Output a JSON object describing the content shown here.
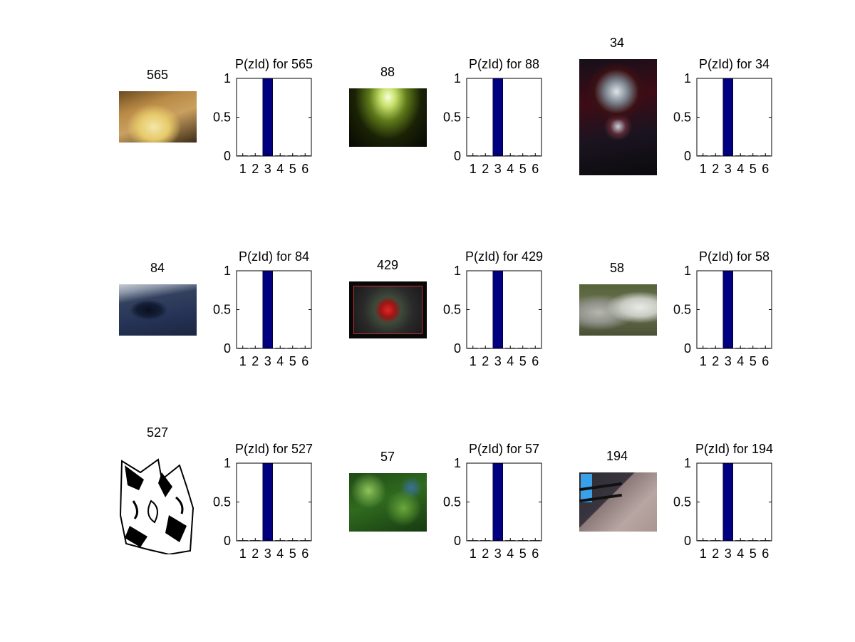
{
  "colors": {
    "bar": "#000080",
    "axis": "#000000",
    "background": "#ffffff"
  },
  "panels": [
    {
      "image_title": "565",
      "chart_title": "P(zId) for 565",
      "thumb": "cake"
    },
    {
      "image_title": "88",
      "chart_title": "P(zId) for 88",
      "thumb": "wall-light"
    },
    {
      "image_title": "34",
      "chart_title": "P(zId) for 34",
      "thumb": "motorcycle-tank"
    },
    {
      "image_title": "84",
      "chart_title": "P(zId) for 84",
      "thumb": "dome-interior"
    },
    {
      "image_title": "429",
      "chart_title": "P(zId) for 429",
      "thumb": "red-lily"
    },
    {
      "image_title": "58",
      "chart_title": "P(zId) for 58",
      "thumb": "horses"
    },
    {
      "image_title": "527",
      "chart_title": "P(zId) for 527",
      "thumb": "line-art"
    },
    {
      "image_title": "57",
      "chart_title": "P(zId) for 57",
      "thumb": "green-bokeh"
    },
    {
      "image_title": "194",
      "chart_title": "P(zId) for 194",
      "thumb": "blue-chair-shadow"
    }
  ],
  "chart_data": [
    {
      "type": "bar",
      "title": "P(zId) for 565",
      "categories": [
        "1",
        "2",
        "3",
        "4",
        "5",
        "6"
      ],
      "values": [
        0.005,
        0.005,
        1,
        0.005,
        0.005,
        0.005
      ],
      "ylim": [
        0,
        1
      ],
      "yticks": [
        "0",
        "0.5",
        "1"
      ],
      "grid": false
    },
    {
      "type": "bar",
      "title": "P(zId) for 88",
      "categories": [
        "1",
        "2",
        "3",
        "4",
        "5",
        "6"
      ],
      "values": [
        0.005,
        0.005,
        1,
        0.005,
        0.005,
        0.005
      ],
      "ylim": [
        0,
        1
      ],
      "yticks": [
        "0",
        "0.5",
        "1"
      ],
      "grid": false
    },
    {
      "type": "bar",
      "title": "P(zId) for 34",
      "categories": [
        "1",
        "2",
        "3",
        "4",
        "5",
        "6"
      ],
      "values": [
        0.005,
        0.005,
        1,
        0.005,
        0.005,
        0.005
      ],
      "ylim": [
        0,
        1
      ],
      "yticks": [
        "0",
        "0.5",
        "1"
      ],
      "grid": false
    },
    {
      "type": "bar",
      "title": "P(zId) for 84",
      "categories": [
        "1",
        "2",
        "3",
        "4",
        "5",
        "6"
      ],
      "values": [
        0.005,
        0.005,
        1,
        0.005,
        0.005,
        0.005
      ],
      "ylim": [
        0,
        1
      ],
      "yticks": [
        "0",
        "0.5",
        "1"
      ],
      "grid": false
    },
    {
      "type": "bar",
      "title": "P(zId) for 429",
      "categories": [
        "1",
        "2",
        "3",
        "4",
        "5",
        "6"
      ],
      "values": [
        0.005,
        0.005,
        1,
        0.005,
        0.005,
        0.005
      ],
      "ylim": [
        0,
        1
      ],
      "yticks": [
        "0",
        "0.5",
        "1"
      ],
      "grid": false
    },
    {
      "type": "bar",
      "title": "P(zId) for 58",
      "categories": [
        "1",
        "2",
        "3",
        "4",
        "5",
        "6"
      ],
      "values": [
        0.005,
        0.005,
        1,
        0.005,
        0.005,
        0.005
      ],
      "ylim": [
        0,
        1
      ],
      "yticks": [
        "0",
        "0.5",
        "1"
      ],
      "grid": false
    },
    {
      "type": "bar",
      "title": "P(zId) for 527",
      "categories": [
        "1",
        "2",
        "3",
        "4",
        "5",
        "6"
      ],
      "values": [
        0.005,
        0.005,
        1,
        0.005,
        0.005,
        0.005
      ],
      "ylim": [
        0,
        1
      ],
      "yticks": [
        "0",
        "0.5",
        "1"
      ],
      "grid": false
    },
    {
      "type": "bar",
      "title": "P(zId) for 57",
      "categories": [
        "1",
        "2",
        "3",
        "4",
        "5",
        "6"
      ],
      "values": [
        0.005,
        0.005,
        1,
        0.005,
        0.005,
        0.005
      ],
      "ylim": [
        0,
        1
      ],
      "yticks": [
        "0",
        "0.5",
        "1"
      ],
      "grid": false
    },
    {
      "type": "bar",
      "title": "P(zId) for 194",
      "categories": [
        "1",
        "2",
        "3",
        "4",
        "5",
        "6"
      ],
      "values": [
        0.005,
        0.005,
        1,
        0.005,
        0.005,
        0.005
      ],
      "ylim": [
        0,
        1
      ],
      "yticks": [
        "0",
        "0.5",
        "1"
      ],
      "grid": false
    }
  ]
}
